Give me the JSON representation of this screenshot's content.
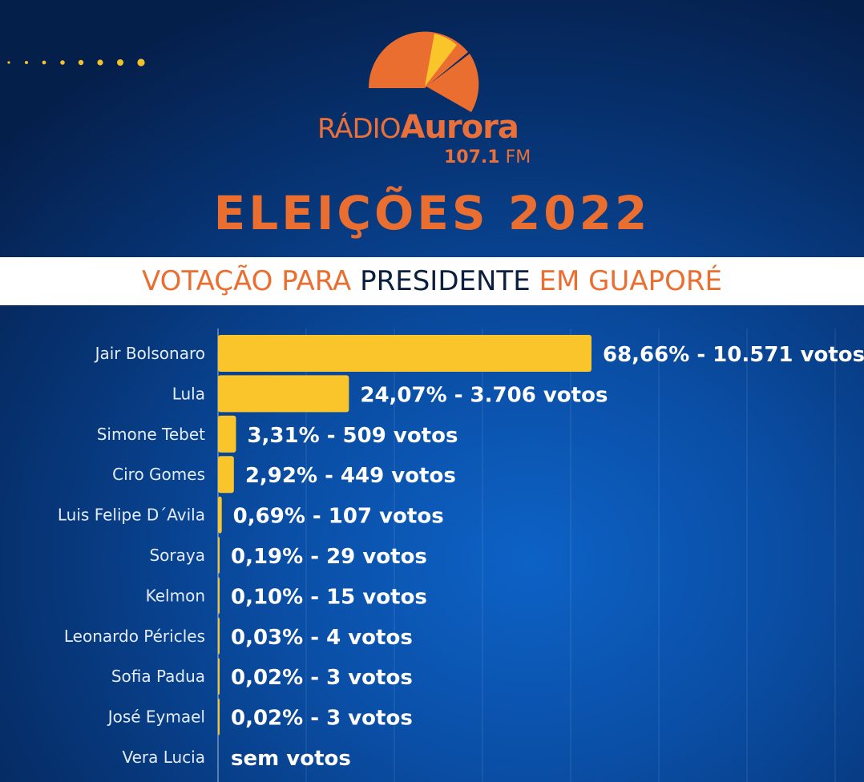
{
  "colors": {
    "bar": "#f9c52a",
    "brand_orange": "#ea6e30",
    "dark_text": "#0b1f3f",
    "dots": "#f2c12e"
  },
  "logo": {
    "radio": "RÁDIO",
    "name": "Aurora",
    "frequency": "107.1",
    "band": "FM"
  },
  "title": "ELEIÇÕES 2022",
  "subtitle": {
    "part1": "VOTAÇÃO PARA ",
    "part2": "PRESIDENTE",
    "part3": " EM GUAPORÉ"
  },
  "chart_data": {
    "type": "bar",
    "orientation": "horizontal",
    "categories": [
      "Jair Bolsonaro",
      "Lula",
      "Simone Tebet",
      "Ciro Gomes",
      "Luis Felipe D´Avila",
      "Soraya",
      "Kelmon",
      "Leonardo Péricles",
      "Sofia Padua",
      "José Eymael",
      "Vera Lucia"
    ],
    "values": [
      68.66,
      24.07,
      3.31,
      2.92,
      0.69,
      0.19,
      0.1,
      0.03,
      0.02,
      0.02,
      0
    ],
    "labels": [
      "68,66% - 10.571 votos",
      "24,07% - 3.706 votos",
      "3,31% - 509 votos",
      "2,92% - 449 votos",
      "0,69% - 107 votos",
      "0,19% - 29 votos",
      "0,10% - 15 votos",
      "0,03% - 4 votos",
      "0,02% - 3 votos",
      "0,02% - 3 votos",
      "sem votos"
    ],
    "xlim": [
      0,
      100
    ],
    "grid": true
  }
}
